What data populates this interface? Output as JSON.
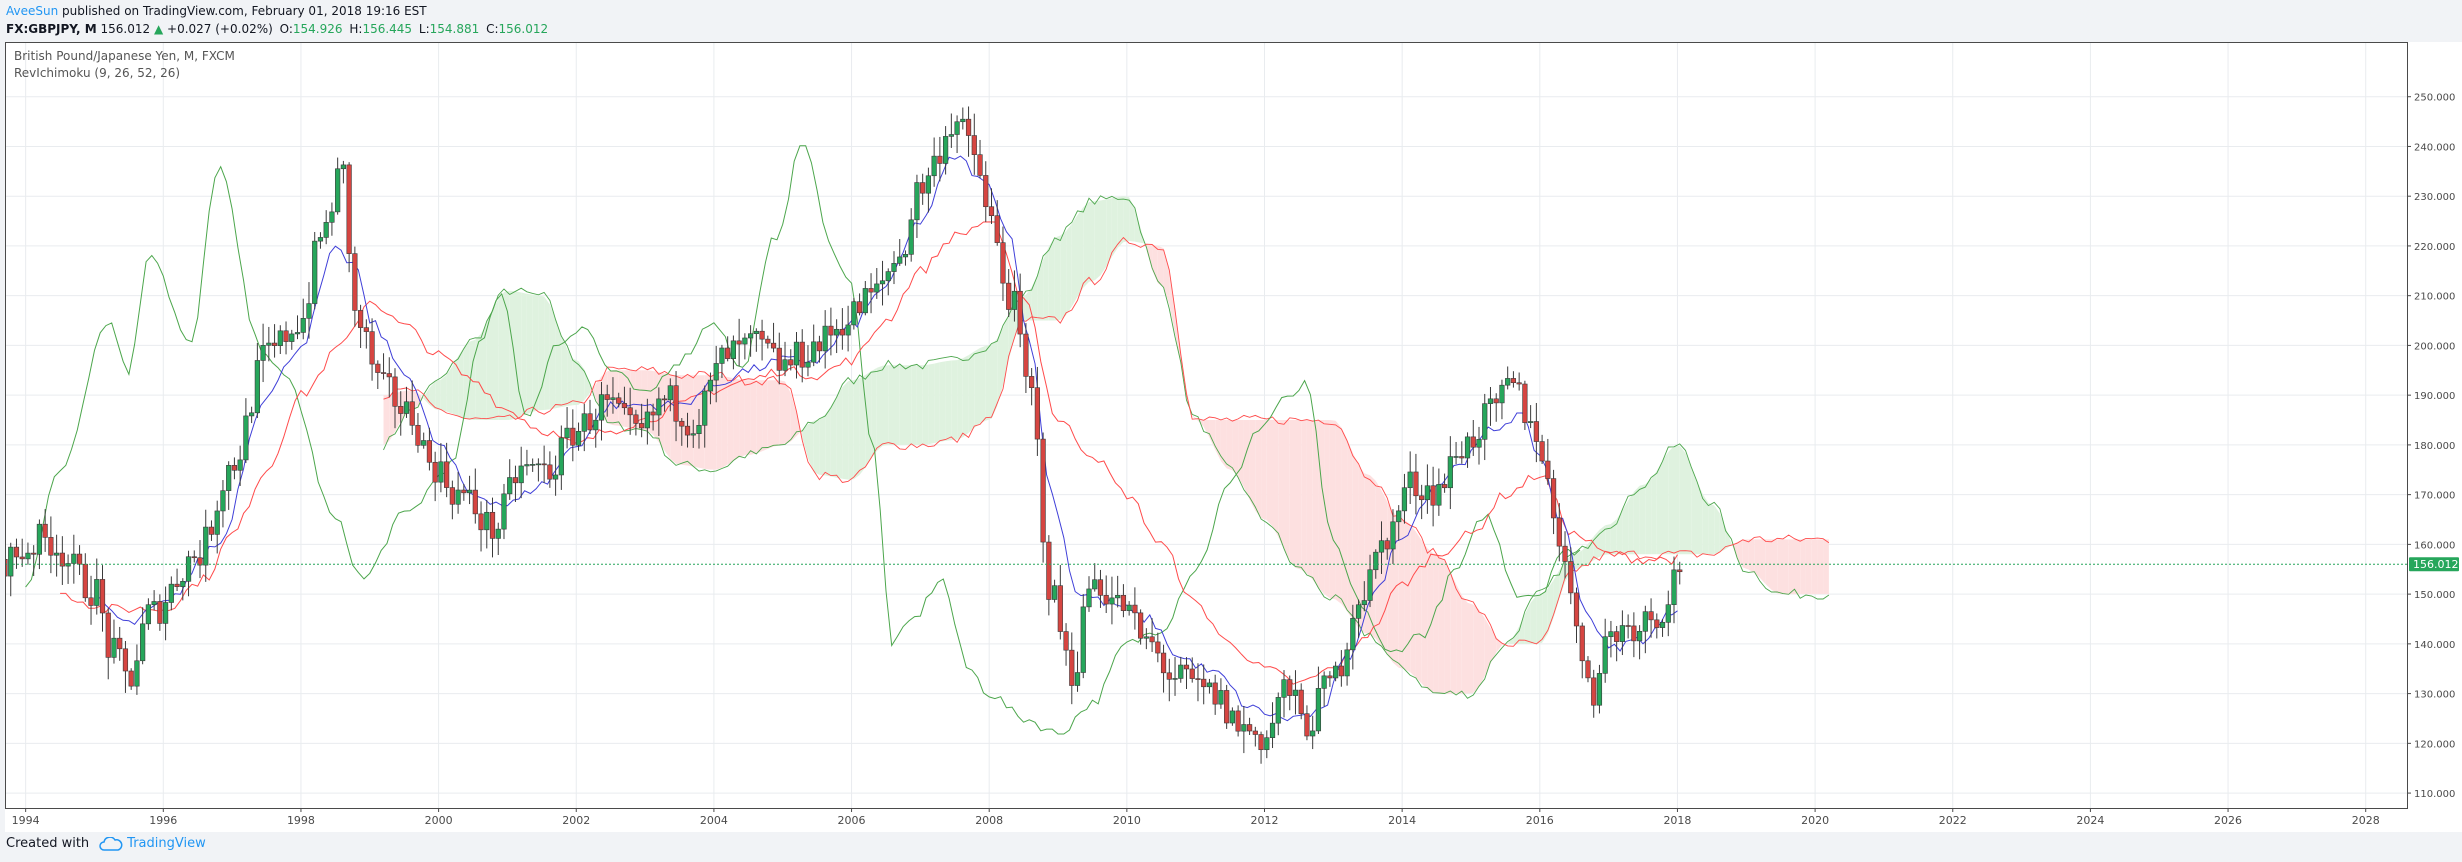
{
  "header": {
    "author": "AveeSun",
    "published_text": "published on TradingView.com, February 01, 2018 19:16 EST",
    "symbol": "FX:GBPJPY, M",
    "last": "156.012",
    "change": "+0.027 (+0.02%)",
    "o_label": "O:",
    "o": "154.926",
    "h_label": "H:",
    "h": "156.445",
    "l_label": "L:",
    "l": "154.881",
    "c_label": "C:",
    "c": "156.012"
  },
  "footer": {
    "created_with": "Created with",
    "brand": "TradingView"
  },
  "chart_data": {
    "type": "candlestick",
    "title": "British Pound/Japanese Yen, M, FXCM",
    "indicator_label": "RevIchimoku (9, 26, 52, 26)",
    "y_ticks": [
      "110.000",
      "120.000",
      "130.000",
      "140.000",
      "150.000",
      "160.000",
      "170.000",
      "180.000",
      "190.000",
      "200.000",
      "210.000",
      "220.000",
      "230.000",
      "240.000",
      "250.000"
    ],
    "ylim": [
      107,
      261
    ],
    "x_ticks": [
      "1994",
      "1996",
      "1998",
      "2000",
      "2002",
      "2004",
      "2006",
      "2008",
      "2010",
      "2012",
      "2014",
      "2016",
      "2018",
      "2020",
      "2022",
      "2024",
      "2026",
      "2028"
    ],
    "xlim": [
      1993.7,
      2028.6
    ],
    "last_price_label": "156.012",
    "last_price": 156.012,
    "colors": {
      "up": "#26a65b",
      "down": "#d64541",
      "tenkan": "#3f3fd8",
      "kijun": "#ff4b4b",
      "chikou": "#4ca64c",
      "cloud_bull": "#dff2df",
      "cloud_bear": "#fde0e0",
      "price_line": "#26a65b"
    },
    "close_anchors": [
      [
        1993.7,
        157
      ],
      [
        1994.3,
        161
      ],
      [
        1995.0,
        151
      ],
      [
        1995.25,
        138
      ],
      [
        1995.5,
        133
      ],
      [
        1995.8,
        146
      ],
      [
        1996.5,
        158
      ],
      [
        1997.0,
        176
      ],
      [
        1997.5,
        198
      ],
      [
        1998.0,
        205
      ],
      [
        1998.3,
        222
      ],
      [
        1998.6,
        235
      ],
      [
        1998.8,
        205
      ],
      [
        1999.2,
        191
      ],
      [
        1999.6,
        186
      ],
      [
        1999.9,
        176
      ],
      [
        2000.3,
        170
      ],
      [
        2000.8,
        163
      ],
      [
        2001.2,
        175
      ],
      [
        2001.6,
        175
      ],
      [
        2002.0,
        183
      ],
      [
        2002.4,
        188
      ],
      [
        2002.9,
        182
      ],
      [
        2003.3,
        189
      ],
      [
        2003.7,
        185
      ],
      [
        2004.2,
        198
      ],
      [
        2004.6,
        200
      ],
      [
        2005.0,
        196
      ],
      [
        2005.5,
        200
      ],
      [
        2005.9,
        205
      ],
      [
        2006.3,
        210
      ],
      [
        2006.7,
        218
      ],
      [
        2007.0,
        232
      ],
      [
        2007.5,
        245
      ],
      [
        2007.8,
        238
      ],
      [
        2008.0,
        225
      ],
      [
        2008.3,
        210
      ],
      [
        2008.6,
        190
      ],
      [
        2008.9,
        150
      ],
      [
        2009.2,
        134
      ],
      [
        2009.5,
        153
      ],
      [
        2009.9,
        148
      ],
      [
        2010.3,
        140
      ],
      [
        2010.7,
        133
      ],
      [
        2011.2,
        130
      ],
      [
        2011.7,
        123
      ],
      [
        2012.0,
        121
      ],
      [
        2012.3,
        131
      ],
      [
        2012.6,
        124
      ],
      [
        2013.0,
        133
      ],
      [
        2013.4,
        150
      ],
      [
        2013.8,
        162
      ],
      [
        2014.1,
        172
      ],
      [
        2014.5,
        171
      ],
      [
        2014.9,
        180
      ],
      [
        2015.3,
        186
      ],
      [
        2015.6,
        192
      ],
      [
        2015.9,
        184
      ],
      [
        2016.3,
        162
      ],
      [
        2016.6,
        138
      ],
      [
        2016.8,
        131
      ],
      [
        2017.0,
        142
      ],
      [
        2017.4,
        144
      ],
      [
        2017.7,
        146
      ],
      [
        2018.08,
        156.012
      ]
    ],
    "chikou_anchors": [
      [
        1994.0,
        152
      ],
      [
        1994.5,
        175
      ],
      [
        1995.2,
        205
      ],
      [
        1995.5,
        195
      ],
      [
        1995.8,
        219
      ],
      [
        1996.4,
        200
      ],
      [
        1996.8,
        236
      ],
      [
        1997.4,
        200
      ],
      [
        1997.8,
        193
      ],
      [
        1998.5,
        165
      ],
      [
        1998.9,
        153
      ],
      [
        1999.5,
        166
      ],
      [
        2000.2,
        176
      ],
      [
        2000.6,
        200
      ],
      [
        2000.9,
        211
      ],
      [
        2001.3,
        185
      ],
      [
        2001.7,
        200
      ],
      [
        2002.1,
        204
      ],
      [
        2002.5,
        195
      ],
      [
        2003.0,
        190
      ],
      [
        2003.5,
        197
      ],
      [
        2004.0,
        205
      ],
      [
        2004.4,
        195
      ],
      [
        2004.9,
        222
      ],
      [
        2005.3,
        241
      ],
      [
        2005.7,
        220
      ],
      [
        2006.0,
        212
      ],
      [
        2006.3,
        180
      ],
      [
        2006.6,
        140
      ],
      [
        2006.9,
        145
      ],
      [
        2007.3,
        153
      ],
      [
        2007.7,
        135
      ],
      [
        2008.0,
        130
      ],
      [
        2008.5,
        125
      ],
      [
        2009.0,
        122
      ],
      [
        2009.5,
        128
      ],
      [
        2010.0,
        140
      ],
      [
        2010.5,
        143
      ],
      [
        2011.0,
        155
      ],
      [
        2011.5,
        172
      ],
      [
        2011.9,
        183
      ],
      [
        2012.3,
        189
      ],
      [
        2012.6,
        192
      ],
      [
        2013.0,
        160
      ],
      [
        2013.4,
        148
      ],
      [
        2013.8,
        138
      ],
      [
        2014.3,
        142
      ],
      [
        2014.8,
        155
      ],
      [
        2015.2,
        166
      ],
      [
        2015.7,
        150
      ],
      [
        2016.0,
        150
      ],
      [
        2016.3,
        158
      ],
      [
        2016.6,
        159
      ]
    ],
    "tenkan_anchors": [
      [
        1995.0,
        149
      ],
      [
        1995.5,
        144
      ],
      [
        1996.0,
        148
      ],
      [
        1996.8,
        160
      ],
      [
        1997.5,
        190
      ],
      [
        1998.0,
        200
      ],
      [
        1998.5,
        219
      ],
      [
        1998.8,
        216
      ],
      [
        1999.0,
        205
      ],
      [
        1999.5,
        195
      ],
      [
        2000.0,
        180
      ],
      [
        2000.5,
        170
      ],
      [
        2001.0,
        168
      ],
      [
        2001.5,
        172
      ],
      [
        2002.0,
        180
      ],
      [
        2002.5,
        188
      ],
      [
        2003.0,
        188
      ],
      [
        2003.5,
        188
      ],
      [
        2004.0,
        192
      ],
      [
        2004.5,
        195
      ],
      [
        2005.0,
        197
      ],
      [
        2005.5,
        197
      ],
      [
        2006.0,
        204
      ],
      [
        2006.5,
        212
      ],
      [
        2007.0,
        225
      ],
      [
        2007.5,
        238
      ],
      [
        2008.0,
        232
      ],
      [
        2008.3,
        222
      ],
      [
        2008.6,
        200
      ],
      [
        2008.9,
        170
      ],
      [
        2009.3,
        150
      ],
      [
        2009.8,
        148
      ],
      [
        2010.3,
        145
      ],
      [
        2010.8,
        137
      ],
      [
        2011.3,
        134
      ],
      [
        2011.8,
        127
      ],
      [
        2012.3,
        125
      ],
      [
        2012.8,
        126
      ],
      [
        2013.2,
        137
      ],
      [
        2013.6,
        150
      ],
      [
        2014.0,
        162
      ],
      [
        2014.5,
        172
      ],
      [
        2014.9,
        177
      ],
      [
        2015.3,
        183
      ],
      [
        2015.7,
        186
      ],
      [
        2016.0,
        178
      ],
      [
        2016.3,
        165
      ],
      [
        2016.7,
        146
      ],
      [
        2017.0,
        139
      ],
      [
        2017.5,
        141
      ],
      [
        2018.0,
        147
      ]
    ],
    "kijun_anchors": [
      [
        1994.5,
        150
      ],
      [
        1995.2,
        147
      ],
      [
        1996.0,
        147
      ],
      [
        1996.6,
        153
      ],
      [
        1997.0,
        162
      ],
      [
        1997.5,
        175
      ],
      [
        1998.0,
        190
      ],
      [
        1998.6,
        200
      ],
      [
        1999.0,
        209
      ],
      [
        1999.5,
        204
      ],
      [
        2000.0,
        198
      ],
      [
        2000.5,
        193
      ],
      [
        2001.0,
        187
      ],
      [
        2001.5,
        183
      ],
      [
        2002.0,
        180
      ],
      [
        2002.5,
        183
      ],
      [
        2003.0,
        185
      ],
      [
        2003.5,
        188
      ],
      [
        2004.0,
        191
      ],
      [
        2004.5,
        193
      ],
      [
        2005.0,
        195
      ],
      [
        2005.5,
        194
      ],
      [
        2006.0,
        197
      ],
      [
        2006.5,
        205
      ],
      [
        2007.0,
        215
      ],
      [
        2007.5,
        222
      ],
      [
        2008.0,
        225
      ],
      [
        2008.5,
        210
      ],
      [
        2009.0,
        185
      ],
      [
        2009.5,
        178
      ],
      [
        2010.0,
        170
      ],
      [
        2010.5,
        160
      ],
      [
        2011.0,
        148
      ],
      [
        2011.5,
        140
      ],
      [
        2012.0,
        135
      ],
      [
        2012.5,
        132
      ],
      [
        2013.0,
        135
      ],
      [
        2013.5,
        142
      ],
      [
        2014.0,
        152
      ],
      [
        2014.5,
        158
      ],
      [
        2015.0,
        162
      ],
      [
        2015.5,
        170
      ],
      [
        2016.0,
        174
      ],
      [
        2016.5,
        162
      ],
      [
        2017.0,
        158
      ],
      [
        2017.5,
        157
      ],
      [
        2018.0,
        157
      ]
    ],
    "span_a_anchors": [
      [
        1999.2,
        180
      ],
      [
        1999.6,
        187
      ],
      [
        2000.0,
        193
      ],
      [
        2000.5,
        201
      ],
      [
        2001.0,
        211
      ],
      [
        2001.5,
        210
      ],
      [
        2002.0,
        197
      ],
      [
        2002.5,
        184
      ],
      [
        2003.0,
        183
      ],
      [
        2003.5,
        176
      ],
      [
        2004.0,
        175
      ],
      [
        2004.5,
        178
      ],
      [
        2005.0,
        180
      ],
      [
        2005.5,
        185
      ],
      [
        2006.0,
        193
      ],
      [
        2006.5,
        196
      ],
      [
        2007.0,
        196
      ],
      [
        2007.5,
        197
      ],
      [
        2008.0,
        200
      ],
      [
        2008.5,
        210
      ],
      [
        2009.0,
        222
      ],
      [
        2009.5,
        229
      ],
      [
        2010.0,
        230
      ],
      [
        2010.5,
        212
      ],
      [
        2011.0,
        185
      ],
      [
        2011.5,
        175
      ],
      [
        2012.0,
        165
      ],
      [
        2012.5,
        155
      ],
      [
        2013.0,
        149
      ],
      [
        2013.5,
        142
      ],
      [
        2014.0,
        135
      ],
      [
        2014.5,
        130
      ],
      [
        2015.0,
        130
      ],
      [
        2015.5,
        140
      ],
      [
        2016.0,
        150
      ],
      [
        2016.5,
        158
      ],
      [
        2017.0,
        164
      ],
      [
        2017.5,
        172
      ],
      [
        2018.0,
        180
      ],
      [
        2018.5,
        168
      ],
      [
        2019.0,
        155
      ],
      [
        2019.5,
        150
      ],
      [
        2020.2,
        150
      ]
    ],
    "span_b_anchors": [
      [
        1999.2,
        190
      ],
      [
        1999.6,
        191
      ],
      [
        2000.0,
        187
      ],
      [
        2000.5,
        185
      ],
      [
        2001.0,
        185
      ],
      [
        2001.5,
        187
      ],
      [
        2002.0,
        188
      ],
      [
        2002.5,
        195
      ],
      [
        2003.0,
        195
      ],
      [
        2003.5,
        194
      ],
      [
        2004.0,
        194
      ],
      [
        2004.5,
        193
      ],
      [
        2005.0,
        193
      ],
      [
        2005.5,
        174
      ],
      [
        2006.0,
        173
      ],
      [
        2006.5,
        180
      ],
      [
        2007.0,
        180
      ],
      [
        2007.5,
        181
      ],
      [
        2008.0,
        185
      ],
      [
        2008.5,
        205
      ],
      [
        2009.0,
        205
      ],
      [
        2009.5,
        213
      ],
      [
        2010.0,
        221
      ],
      [
        2010.5,
        220
      ],
      [
        2011.0,
        185
      ],
      [
        2011.5,
        185
      ],
      [
        2012.0,
        185
      ],
      [
        2012.5,
        185
      ],
      [
        2013.0,
        185
      ],
      [
        2013.5,
        174
      ],
      [
        2014.0,
        165
      ],
      [
        2014.5,
        158
      ],
      [
        2015.0,
        148
      ],
      [
        2015.5,
        140
      ],
      [
        2016.0,
        140
      ],
      [
        2016.5,
        155
      ],
      [
        2017.0,
        158
      ],
      [
        2017.5,
        158
      ],
      [
        2018.0,
        158
      ],
      [
        2018.5,
        158
      ],
      [
        2019.0,
        161
      ],
      [
        2019.5,
        161
      ],
      [
        2020.2,
        161
      ]
    ]
  }
}
